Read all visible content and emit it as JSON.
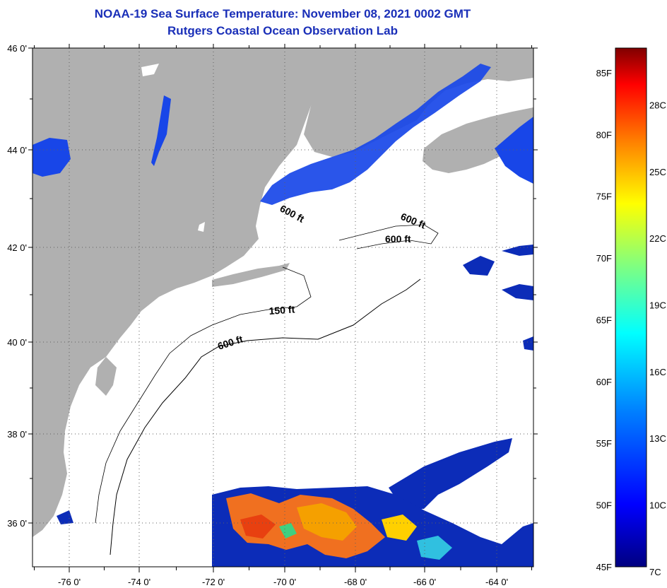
{
  "title": "NOAA-19 Sea Surface Temperature:  November 08, 2021 0002 GMT",
  "subtitle": "Rutgers Coastal Ocean Observation Lab",
  "map": {
    "lat_labels": [
      "46 0'",
      "44 0'",
      "42 0'",
      "40 0'",
      "38 0'",
      "36 0'"
    ],
    "lon_labels": [
      "-76 0'",
      "-74 0'",
      "-72 0'",
      "-70 0'",
      "-68 0'",
      "-66 0'",
      "-64 0'"
    ],
    "isobath_labels": [
      "600 ft",
      "600 ft",
      "600 ft",
      "150 ft",
      "600 ft"
    ],
    "colors": {
      "land": "#b0b0b0",
      "ocean_cloud": "#ffffff",
      "cold_water": "#1040e0",
      "warm_water": "#f07020"
    }
  },
  "colorbar": {
    "f_labels": [
      "85F",
      "80F",
      "75F",
      "70F",
      "65F",
      "60F",
      "55F",
      "50F",
      "45F"
    ],
    "c_labels": [
      "28C",
      "25C",
      "22C",
      "19C",
      "16C",
      "13C",
      "10C",
      "7C"
    ],
    "colors": [
      "#000080",
      "#0000ff",
      "#0080ff",
      "#00ffff",
      "#80ff80",
      "#ffff00",
      "#ff8000",
      "#ff0000",
      "#800000"
    ]
  }
}
